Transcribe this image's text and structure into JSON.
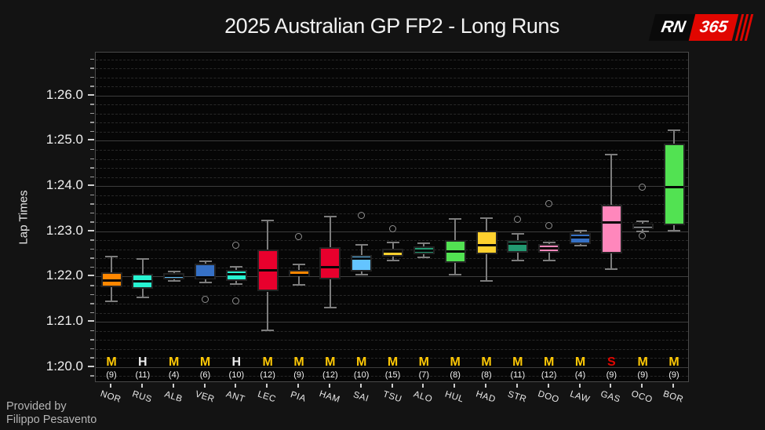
{
  "header": {
    "title": "2025 Australian GP FP2 - Long Runs",
    "logo": {
      "rn": "RN",
      "n365": "365"
    }
  },
  "footer": {
    "provided_by": "Provided by",
    "author": "Filippo Pesavento"
  },
  "chart_data": {
    "type": "boxplot",
    "title": "2025 Australian GP FP2 - Long Runs",
    "ylabel": "Lap Times",
    "ylim_seconds": [
      79.65,
      86.95
    ],
    "ytick_values": [
      80,
      81,
      82,
      83,
      84,
      85,
      86
    ],
    "ytick_labels": [
      "1:20.0",
      "1:21.0",
      "1:22.0",
      "1:23.0",
      "1:24.0",
      "1:25.0",
      "1:26.0"
    ],
    "minor_tick_step": 0.2,
    "grid": {
      "major": "solid",
      "minor": "dashed"
    },
    "legend": "none",
    "tyre_colors": {
      "M": "#FFC906",
      "H": "#ECECEC",
      "S": "#E10600"
    },
    "style_colors": {
      "background": "#131313",
      "plot_background": "#060606",
      "whisker": "#7d7d7d",
      "median": "#050505",
      "major_grid": "#3d3d3d",
      "minor_grid": "#282828"
    },
    "series": [
      {
        "driver": "NOR",
        "tyre": "M",
        "laps": 9,
        "color": "#FF8700",
        "low": 81.46,
        "q1": 81.77,
        "median": 81.92,
        "q3": 82.1,
        "high": 82.45,
        "outliers": []
      },
      {
        "driver": "RUS",
        "tyre": "H",
        "laps": 11,
        "color": "#27F4D2",
        "low": 81.54,
        "q1": 81.73,
        "median": 81.9,
        "q3": 82.06,
        "high": 82.39,
        "outliers": []
      },
      {
        "driver": "ALB",
        "tyre": "M",
        "laps": 4,
        "color": "#64C4FF",
        "low": 81.9,
        "q1": 81.94,
        "median": 82.02,
        "q3": 82.08,
        "high": 82.12,
        "outliers": []
      },
      {
        "driver": "VER",
        "tyre": "M",
        "laps": 6,
        "color": "#3671C6",
        "low": 81.87,
        "q1": 81.94,
        "median": 81.98,
        "q3": 82.28,
        "high": 82.33,
        "outliers": [
          81.49
        ]
      },
      {
        "driver": "ANT",
        "tyre": "H",
        "laps": 10,
        "color": "#27F4D2",
        "low": 81.84,
        "q1": 81.91,
        "median": 82.05,
        "q3": 82.15,
        "high": 82.21,
        "outliers": [
          82.68,
          81.46
        ]
      },
      {
        "driver": "LEC",
        "tyre": "M",
        "laps": 12,
        "color": "#E8002D",
        "low": 80.82,
        "q1": 81.67,
        "median": 82.13,
        "q3": 82.59,
        "high": 83.24,
        "outliers": []
      },
      {
        "driver": "PIA",
        "tyre": "M",
        "laps": 9,
        "color": "#FF8700",
        "low": 81.82,
        "q1": 82.0,
        "median": 82.03,
        "q3": 82.15,
        "high": 82.27,
        "outliers": [
          82.88
        ]
      },
      {
        "driver": "HAM",
        "tyre": "M",
        "laps": 12,
        "color": "#E8002D",
        "low": 81.31,
        "q1": 81.94,
        "median": 82.2,
        "q3": 82.65,
        "high": 83.32,
        "outliers": []
      },
      {
        "driver": "SAI",
        "tyre": "M",
        "laps": 10,
        "color": "#64C4FF",
        "low": 82.05,
        "q1": 82.12,
        "median": 82.4,
        "q3": 82.48,
        "high": 82.71,
        "outliers": [
          83.34
        ]
      },
      {
        "driver": "TSU",
        "tyre": "M",
        "laps": 15,
        "color": "#FFD12E",
        "low": 82.35,
        "q1": 82.45,
        "median": 82.55,
        "q3": 82.62,
        "high": 82.75,
        "outliers": [
          83.05
        ]
      },
      {
        "driver": "ALO",
        "tyre": "M",
        "laps": 7,
        "color": "#229971",
        "low": 82.43,
        "q1": 82.49,
        "median": 82.58,
        "q3": 82.67,
        "high": 82.73,
        "outliers": []
      },
      {
        "driver": "HUL",
        "tyre": "M",
        "laps": 8,
        "color": "#52E252",
        "low": 82.04,
        "q1": 82.31,
        "median": 82.55,
        "q3": 82.8,
        "high": 83.27,
        "outliers": []
      },
      {
        "driver": "HAD",
        "tyre": "M",
        "laps": 8,
        "color": "#FFD12E",
        "low": 81.9,
        "q1": 82.49,
        "median": 82.69,
        "q3": 83.01,
        "high": 83.29,
        "outliers": []
      },
      {
        "driver": "STR",
        "tyre": "M",
        "laps": 11,
        "color": "#229971",
        "low": 82.36,
        "q1": 82.52,
        "median": 82.72,
        "q3": 82.81,
        "high": 82.95,
        "outliers": [
          83.26
        ]
      },
      {
        "driver": "DOO",
        "tyre": "M",
        "laps": 12,
        "color": "#FF87BC",
        "low": 82.36,
        "q1": 82.52,
        "median": 82.62,
        "q3": 82.72,
        "high": 82.76,
        "outliers": [
          83.61,
          83.12
        ]
      },
      {
        "driver": "LAW",
        "tyre": "M",
        "laps": 4,
        "color": "#3671C6",
        "low": 82.69,
        "q1": 82.72,
        "median": 82.86,
        "q3": 82.97,
        "high": 83.01,
        "outliers": []
      },
      {
        "driver": "GAS",
        "tyre": "S",
        "laps": 9,
        "color": "#FF87BC",
        "low": 82.17,
        "q1": 82.51,
        "median": 83.19,
        "q3": 83.59,
        "high": 84.69,
        "outliers": []
      },
      {
        "driver": "OCO",
        "tyre": "M",
        "laps": 9,
        "color": "#B6BABD",
        "low": 83.0,
        "q1": 83.05,
        "median": 83.13,
        "q3": 83.17,
        "high": 83.23,
        "outliers": [
          83.96,
          82.9
        ]
      },
      {
        "driver": "BOR",
        "tyre": "M",
        "laps": 9,
        "color": "#52E252",
        "low": 83.01,
        "q1": 83.14,
        "median": 83.98,
        "q3": 84.94,
        "high": 85.23,
        "outliers": []
      }
    ]
  }
}
